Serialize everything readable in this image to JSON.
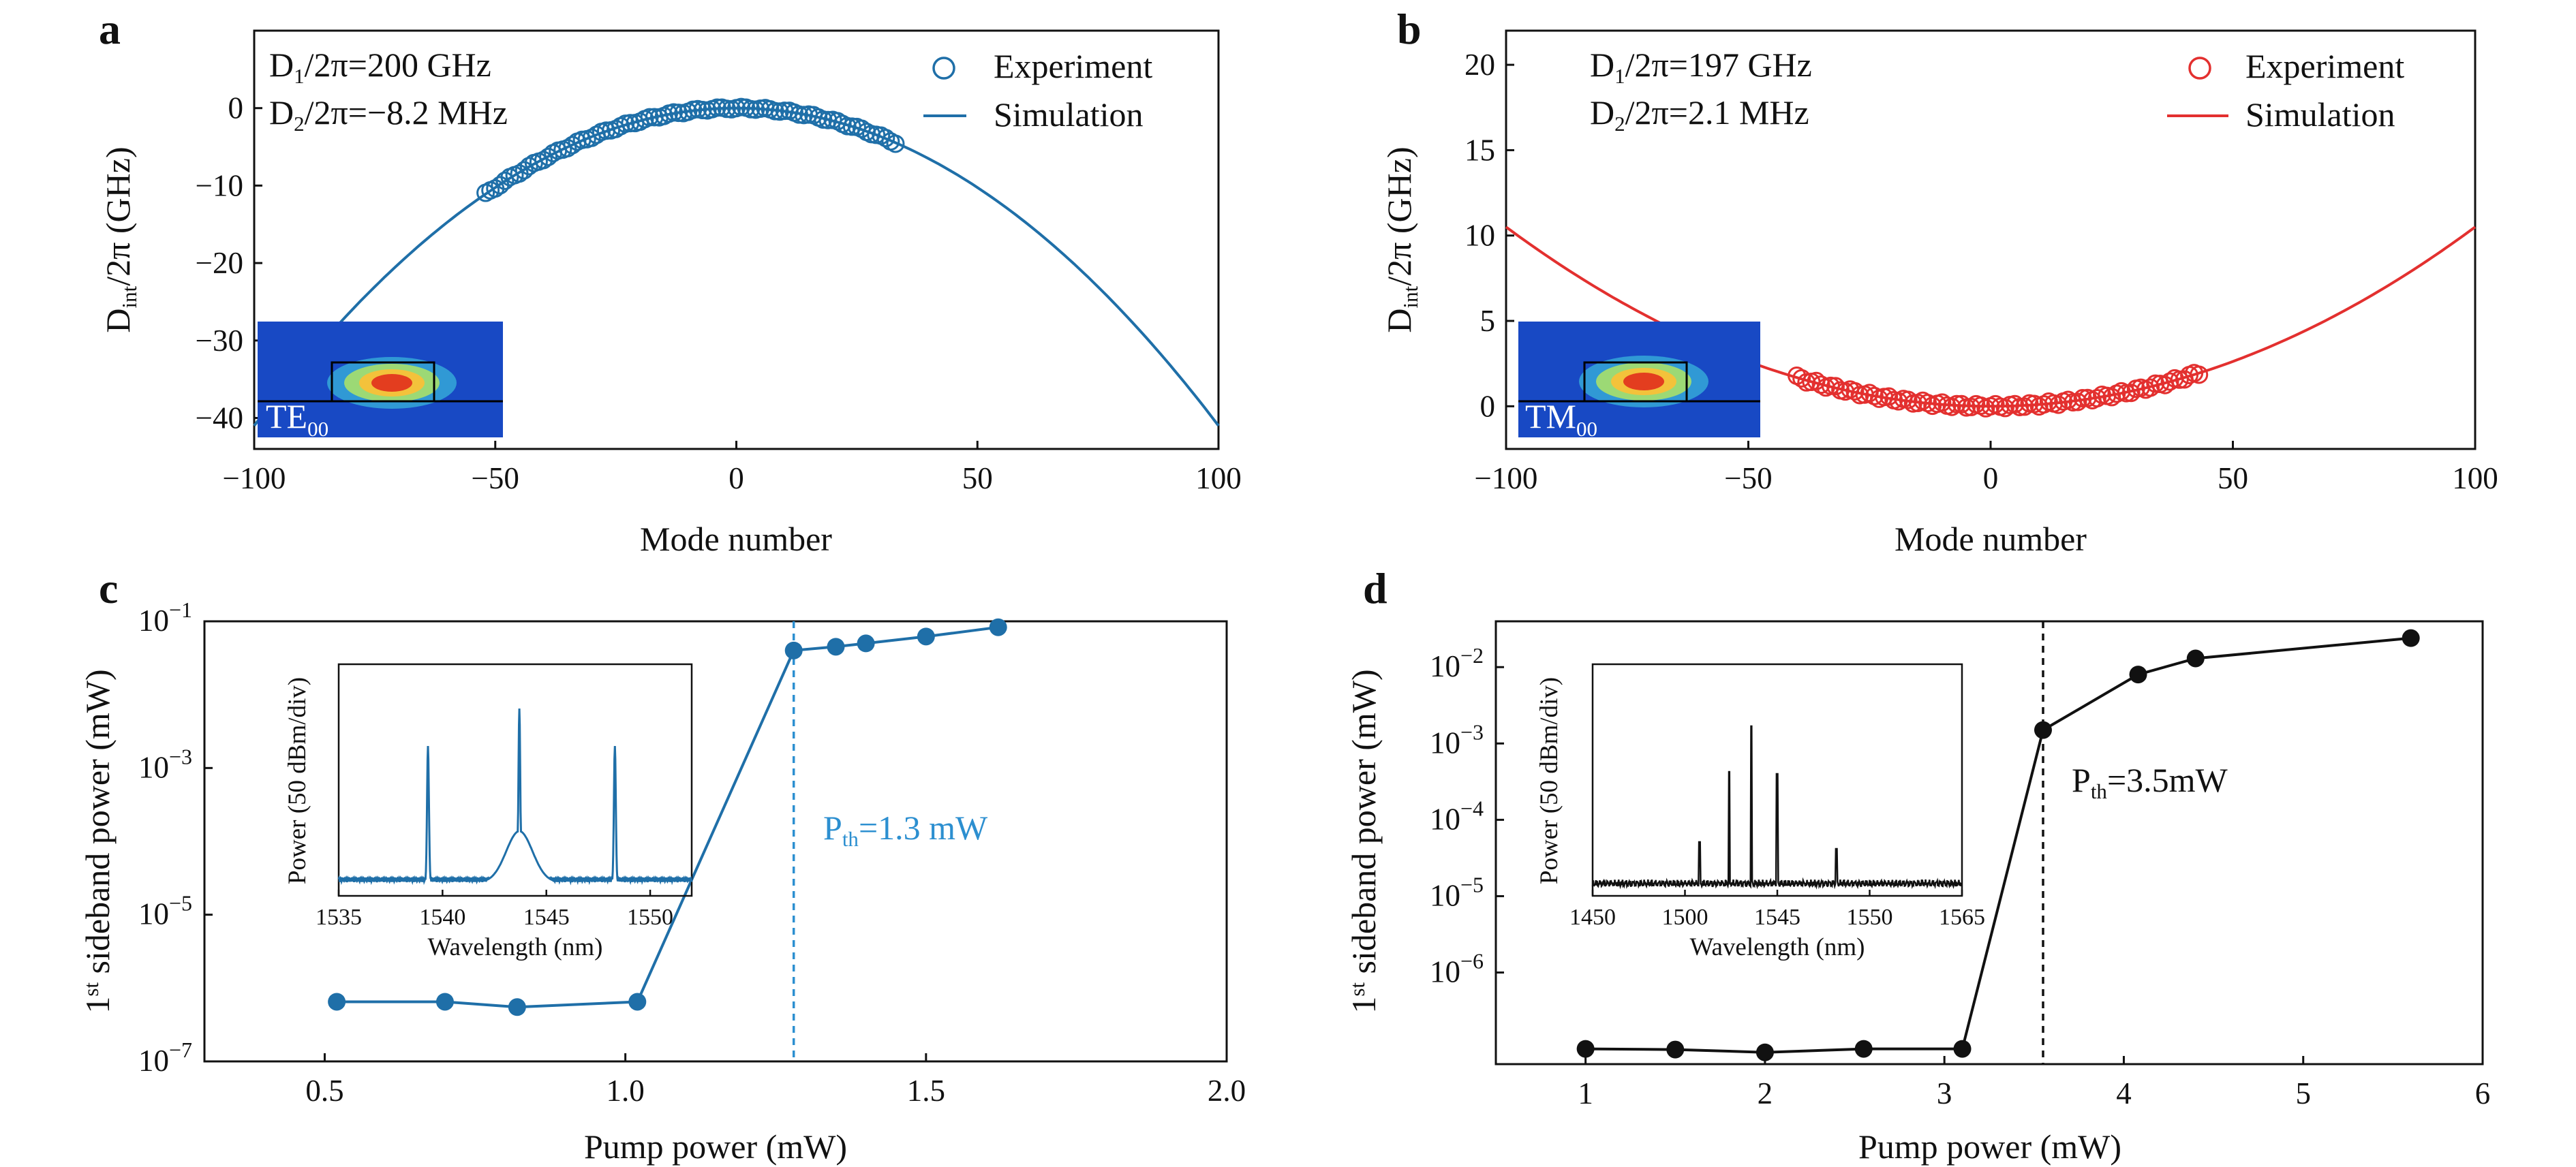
{
  "colors": {
    "blue": "#1f6fa8",
    "red": "#e3302f",
    "black": "#111111",
    "light_blue": "#2c8fd0"
  },
  "chart_data": [
    {
      "id": "a",
      "panel_label": "a",
      "type": "scatter",
      "xlabel": "Mode number",
      "ylabel_main": "D",
      "ylabel_sub": "int",
      "ylabel_rest": "/2π (GHz)",
      "xlim": [
        -100,
        100
      ],
      "ylim": [
        -44,
        10
      ],
      "xticks": [
        -100,
        -50,
        0,
        50,
        100
      ],
      "xtick_labels": [
        "−100",
        "−50",
        "0",
        "50",
        "100"
      ],
      "yticks": [
        0,
        -10,
        -20,
        -30,
        -40
      ],
      "ytick_labels": [
        "0",
        "−10",
        "−20",
        "−30",
        "−40"
      ],
      "color": "#1f6fa8",
      "legend": [
        "Experiment",
        "Simulation"
      ],
      "legend_position": "top-right",
      "annotations": {
        "line1": {
          "pre": "D",
          "sub": "1",
          "post": "/2π=200 GHz"
        },
        "line2": {
          "pre": "D",
          "sub": "2",
          "post": "/2π=−8.2 MHz"
        }
      },
      "inset": {
        "label_main": "TE",
        "label_sub": "00"
      },
      "series": [
        {
          "name": "Experiment",
          "kind": "markers",
          "x_range": [
            -52,
            33
          ],
          "d2_mhz": -8.2
        },
        {
          "name": "Simulation",
          "kind": "line",
          "x_range": [
            -100,
            100
          ],
          "d2_mhz": -8.2
        }
      ]
    },
    {
      "id": "b",
      "panel_label": "b",
      "type": "scatter",
      "xlabel": "Mode number",
      "ylabel_main": "D",
      "ylabel_sub": "int",
      "ylabel_rest": "/2π (GHz)",
      "xlim": [
        -100,
        100
      ],
      "ylim": [
        -2.5,
        22
      ],
      "xticks": [
        -100,
        -50,
        0,
        50,
        100
      ],
      "xtick_labels": [
        "−100",
        "−50",
        "0",
        "50",
        "100"
      ],
      "yticks": [
        0,
        5,
        10,
        15,
        20
      ],
      "ytick_labels": [
        "0",
        "5",
        "10",
        "15",
        "20"
      ],
      "color": "#e3302f",
      "legend": [
        "Experiment",
        "Simulation"
      ],
      "legend_position": "top-right",
      "annotations": {
        "line1": {
          "pre": "D",
          "sub": "1",
          "post": "/2π=197 GHz"
        },
        "line2": {
          "pre": "D",
          "sub": "2",
          "post": "/2π=2.1 MHz"
        }
      },
      "inset": {
        "label_main": "TM",
        "label_sub": "00"
      },
      "series": [
        {
          "name": "Experiment",
          "kind": "markers",
          "x_range": [
            -40,
            43
          ],
          "d2_mhz": 2.1
        },
        {
          "name": "Simulation",
          "kind": "line",
          "x_range": [
            -100,
            100
          ],
          "d2_mhz": 2.1
        }
      ]
    },
    {
      "id": "c",
      "panel_label": "c",
      "type": "line",
      "scale": "log",
      "xlabel": "Pump power (mW)",
      "ylabel_pre": "1",
      "ylabel_sup": "st",
      "ylabel_rest": " sideband power (mW)",
      "xlim": [
        0.3,
        2.0
      ],
      "ylim_log10": [
        -7,
        -1
      ],
      "xticks": [
        0.5,
        1.0,
        1.5,
        2.0
      ],
      "xtick_labels": [
        "0.5",
        "1.0",
        "1.5",
        "2.0"
      ],
      "yticks_log10": [
        -1,
        -3,
        -5,
        -7
      ],
      "ytick_labels": [
        {
          "base": "10",
          "exp": "−1"
        },
        {
          "base": "10",
          "exp": "−3"
        },
        {
          "base": "10",
          "exp": "−5"
        },
        {
          "base": "10",
          "exp": "−7"
        }
      ],
      "color": "#1f6fa8",
      "threshold": {
        "x": 1.28,
        "pre": "P",
        "sub": "th",
        "post": "=1.3 mW",
        "color": "#2c8fd0"
      },
      "series": [
        {
          "x": [
            0.52,
            0.7,
            0.82,
            1.02,
            1.28,
            1.35,
            1.4,
            1.5,
            1.62
          ],
          "y": [
            6.5e-07,
            6.5e-07,
            5.5e-07,
            6.5e-07,
            0.04,
            0.045,
            0.05,
            0.062,
            0.083
          ]
        }
      ],
      "inset": {
        "xlabel": "Wavelength (nm)",
        "ylabel": "Power (50 dBm/div)",
        "xlim": [
          1535,
          1552
        ],
        "xticks": [
          1535,
          1540,
          1545,
          1550
        ],
        "xtick_labels": [
          "1535",
          "1540",
          "1545",
          "1550"
        ],
        "peaks_nm": [
          1539.3,
          1543.7,
          1548.3
        ]
      }
    },
    {
      "id": "d",
      "panel_label": "d",
      "type": "line",
      "scale": "log",
      "xlabel": "Pump power (mW)",
      "ylabel_pre": "1",
      "ylabel_sup": "st",
      "ylabel_rest": " sideband power (mW)",
      "xlim": [
        0.5,
        6.0
      ],
      "ylim_log10": [
        -7.2,
        -1.4
      ],
      "xticks": [
        1,
        2,
        3,
        4,
        5,
        6
      ],
      "xtick_labels": [
        "1",
        "2",
        "3",
        "4",
        "5",
        "6"
      ],
      "yticks_log10": [
        -2,
        -3,
        -4,
        -5,
        -6
      ],
      "ytick_labels": [
        {
          "base": "10",
          "exp": "−2"
        },
        {
          "base": "10",
          "exp": "−3"
        },
        {
          "base": "10",
          "exp": "−4"
        },
        {
          "base": "10",
          "exp": "−5"
        },
        {
          "base": "10",
          "exp": "−6"
        }
      ],
      "color": "#111111",
      "threshold": {
        "x": 3.55,
        "pre": "P",
        "sub": "th",
        "post": "=3.5mW",
        "color": "#111111"
      },
      "series": [
        {
          "x": [
            1.0,
            1.5,
            2.0,
            2.55,
            3.1,
            3.55,
            4.08,
            4.4,
            5.6
          ],
          "y": [
            1e-07,
            9.8e-08,
            9e-08,
            1e-07,
            1e-07,
            0.0015,
            0.008,
            0.013,
            0.024
          ]
        }
      ],
      "inset": {
        "xlabel": "Wavelength (nm)",
        "ylabel": "Power (50 dBm/div)",
        "xlim": [
          1450,
          1565
        ],
        "xtick_labels": [
          "1450",
          "1500",
          "1545",
          "1550",
          "1565"
        ],
        "peaks": [
          0.29,
          0.37,
          0.43,
          0.5,
          0.66
        ]
      }
    }
  ]
}
